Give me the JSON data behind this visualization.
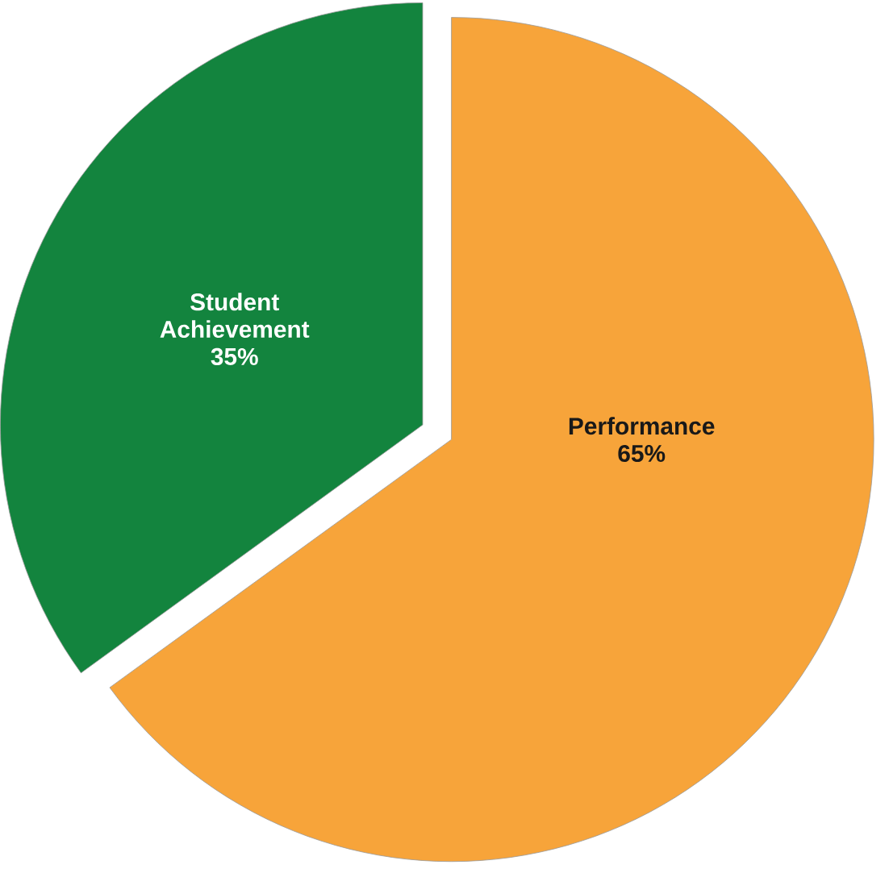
{
  "chart_data": {
    "type": "pie",
    "categories": [
      "Performance",
      "Student Achievement"
    ],
    "values": [
      65,
      35
    ],
    "colors": [
      "#f7a43a",
      "#13843e"
    ],
    "value_labels": [
      "65%",
      "35%"
    ]
  }
}
